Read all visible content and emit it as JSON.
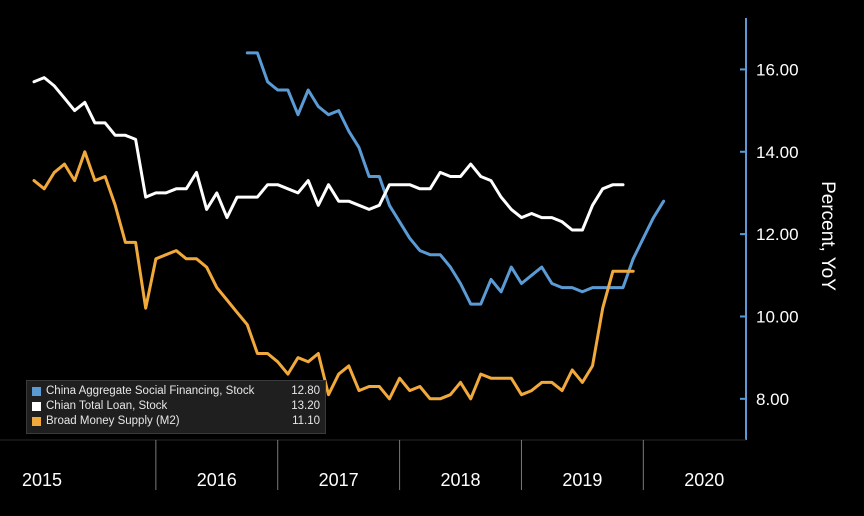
{
  "chart_data": {
    "type": "line",
    "ylabel": "Percent, YoY",
    "ylim": [
      7.0,
      17.2
    ],
    "yticks": [
      "8.00",
      "10.00",
      "12.00",
      "14.00",
      "16.00"
    ],
    "ytick_values": [
      8,
      10,
      12,
      14,
      16
    ],
    "x_start": 2015.0,
    "x_end": 2020.58,
    "years": [
      "2015",
      "2016",
      "2017",
      "2018",
      "2019",
      "2020"
    ],
    "grid": false,
    "legend_position": "bottom-left",
    "series": [
      {
        "name": "China Aggregate Social Financing, Stock",
        "last_value": "12.80",
        "color": "#5b9bd5",
        "start": 2016.75,
        "values": [
          16.4,
          16.4,
          15.7,
          15.5,
          15.5,
          14.9,
          15.5,
          15.1,
          14.9,
          15.0,
          14.5,
          14.1,
          13.4,
          13.4,
          12.7,
          12.3,
          11.9,
          11.6,
          11.5,
          11.5,
          11.2,
          10.8,
          10.3,
          10.3,
          10.9,
          10.6,
          11.2,
          10.8,
          11.0,
          11.2,
          10.8,
          10.7,
          10.7,
          10.6,
          10.7,
          10.7,
          10.7,
          10.7,
          11.4,
          11.9,
          12.4,
          12.8
        ]
      },
      {
        "name": "Chian Total Loan, Stock",
        "last_value": "13.20",
        "color": "#ffffff",
        "start": 2015.0,
        "values": [
          15.7,
          15.8,
          15.6,
          15.3,
          15.0,
          15.2,
          14.7,
          14.7,
          14.4,
          14.4,
          14.3,
          12.9,
          13.0,
          13.0,
          13.1,
          13.1,
          13.5,
          12.6,
          13.0,
          12.4,
          12.9,
          12.9,
          12.9,
          13.2,
          13.2,
          13.1,
          13.0,
          13.3,
          12.7,
          13.2,
          12.8,
          12.8,
          12.7,
          12.6,
          12.7,
          13.2,
          13.2,
          13.2,
          13.1,
          13.1,
          13.5,
          13.4,
          13.4,
          13.7,
          13.4,
          13.3,
          12.9,
          12.6,
          12.4,
          12.5,
          12.4,
          12.4,
          12.3,
          12.1,
          12.1,
          12.7,
          13.1,
          13.2,
          13.2
        ]
      },
      {
        "name": "Broad Money Supply (M2)",
        "last_value": "11.10",
        "color": "#f2a93b",
        "start": 2015.0,
        "values": [
          13.3,
          13.1,
          13.5,
          13.7,
          13.3,
          14.0,
          13.3,
          13.4,
          12.7,
          11.8,
          11.8,
          10.2,
          11.4,
          11.5,
          11.6,
          11.4,
          11.4,
          11.2,
          10.7,
          10.4,
          10.1,
          9.8,
          9.1,
          9.1,
          8.9,
          8.6,
          9.0,
          8.9,
          9.1,
          8.1,
          8.6,
          8.8,
          8.2,
          8.3,
          8.3,
          8.0,
          8.5,
          8.2,
          8.3,
          8.0,
          8.0,
          8.1,
          8.4,
          8.0,
          8.6,
          8.5,
          8.5,
          8.5,
          8.1,
          8.2,
          8.4,
          8.4,
          8.2,
          8.7,
          8.4,
          8.8,
          10.2,
          11.1,
          11.1,
          11.1
        ]
      }
    ]
  }
}
